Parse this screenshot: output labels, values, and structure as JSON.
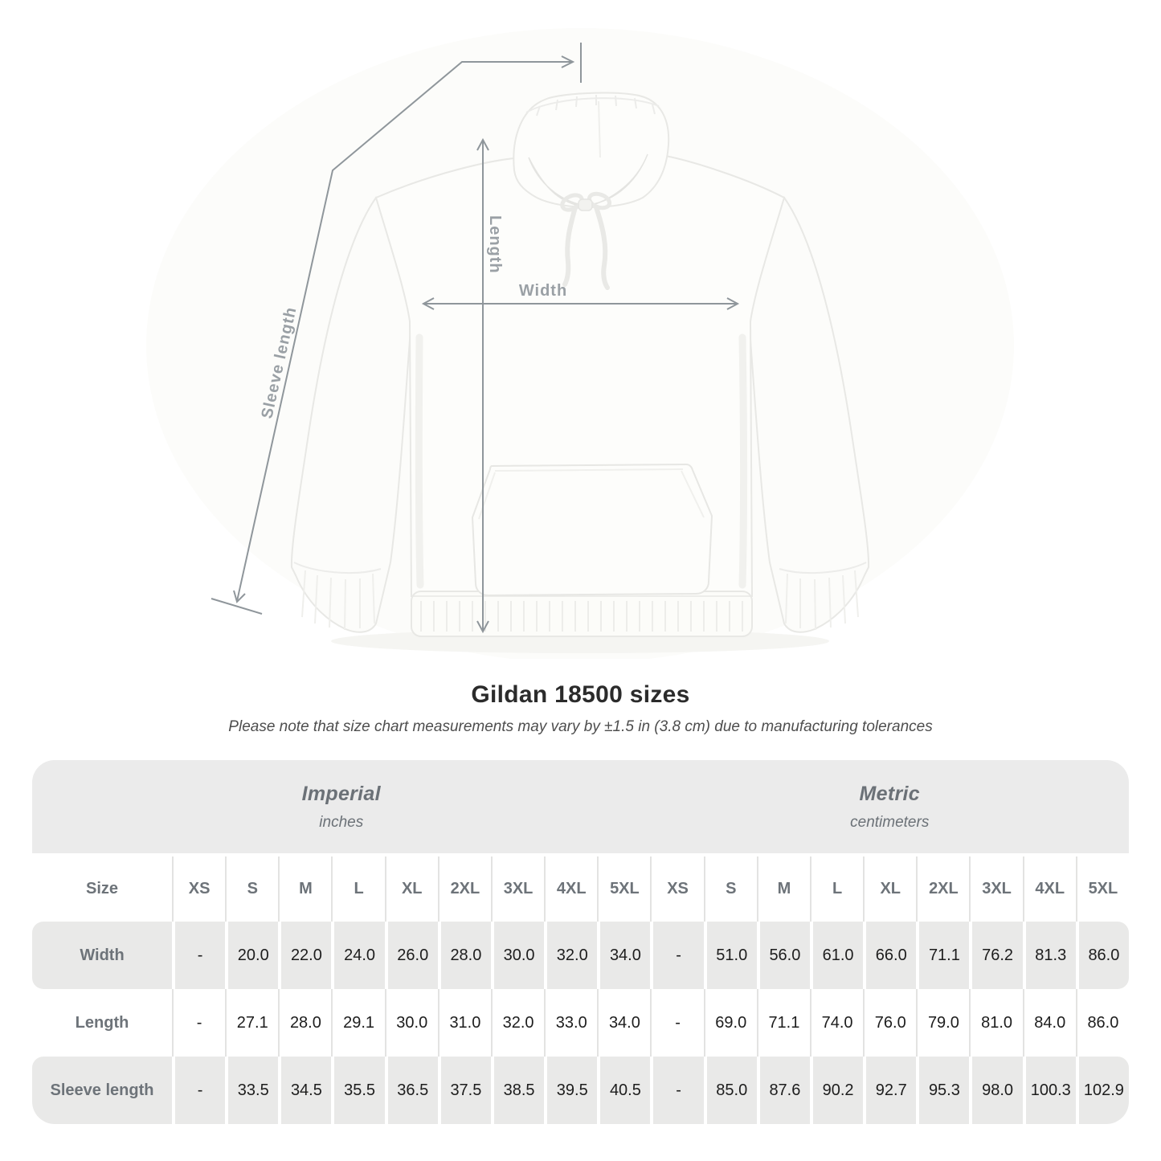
{
  "page": {
    "title": "Gildan 18500 sizes",
    "subtitle": "Please note that size chart measurements may vary by ±1.5 in (3.8 cm) due to manufacturing tolerances"
  },
  "diagram": {
    "product": "white pullover hoodie with drawstrings, kangaroo pocket, ribbed cuffs and hem",
    "labels": {
      "length": "Length",
      "width": "Width",
      "sleeve_length": "Sleeve length"
    }
  },
  "colors": {
    "arrow_gray": "#8f969b",
    "diagram_label_gray": "#9aa0a5",
    "header_text_gray": "#6d7379",
    "band_gray": "#ebebeb",
    "stripe_gray": "#e9e9e8",
    "value_text": "#1d1d1d"
  },
  "table": {
    "groups": [
      {
        "label": "Imperial",
        "sublabel": "inches"
      },
      {
        "label": "Metric",
        "sublabel": "centimeters"
      }
    ],
    "size_header": "Size",
    "sizes": [
      "XS",
      "S",
      "M",
      "L",
      "XL",
      "2XL",
      "3XL",
      "4XL",
      "5XL"
    ],
    "rows": [
      {
        "label": "Width",
        "imperial": [
          "-",
          "20.0",
          "22.0",
          "24.0",
          "26.0",
          "28.0",
          "30.0",
          "32.0",
          "34.0"
        ],
        "metric": [
          "-",
          "51.0",
          "56.0",
          "61.0",
          "66.0",
          "71.1",
          "76.2",
          "81.3",
          "86.0"
        ]
      },
      {
        "label": "Length",
        "imperial": [
          "-",
          "27.1",
          "28.0",
          "29.1",
          "30.0",
          "31.0",
          "32.0",
          "33.0",
          "34.0"
        ],
        "metric": [
          "-",
          "69.0",
          "71.1",
          "74.0",
          "76.0",
          "79.0",
          "81.0",
          "84.0",
          "86.0"
        ]
      },
      {
        "label": "Sleeve length",
        "imperial": [
          "-",
          "33.5",
          "34.5",
          "35.5",
          "36.5",
          "37.5",
          "38.5",
          "39.5",
          "40.5"
        ],
        "metric": [
          "-",
          "85.0",
          "87.6",
          "90.2",
          "92.7",
          "95.3",
          "98.0",
          "100.3",
          "102.9"
        ]
      }
    ]
  },
  "chart_data": {
    "type": "table",
    "title": "Gildan 18500 sizes",
    "columns": [
      "Size",
      "XS",
      "S",
      "M",
      "L",
      "XL",
      "2XL",
      "3XL",
      "4XL",
      "5XL"
    ],
    "units": {
      "imperial": "inches",
      "metric": "centimeters"
    },
    "rows_imperial": [
      [
        "Width",
        null,
        20.0,
        22.0,
        24.0,
        26.0,
        28.0,
        30.0,
        32.0,
        34.0
      ],
      [
        "Length",
        null,
        27.1,
        28.0,
        29.1,
        30.0,
        31.0,
        32.0,
        33.0,
        34.0
      ],
      [
        "Sleeve length",
        null,
        33.5,
        34.5,
        35.5,
        36.5,
        37.5,
        38.5,
        39.5,
        40.5
      ]
    ],
    "rows_metric": [
      [
        "Width",
        null,
        51.0,
        56.0,
        61.0,
        66.0,
        71.1,
        76.2,
        81.3,
        86.0
      ],
      [
        "Length",
        null,
        69.0,
        71.1,
        74.0,
        76.0,
        79.0,
        81.0,
        84.0,
        86.0
      ],
      [
        "Sleeve length",
        null,
        85.0,
        87.6,
        90.2,
        92.7,
        95.3,
        98.0,
        100.3,
        102.9
      ]
    ]
  }
}
